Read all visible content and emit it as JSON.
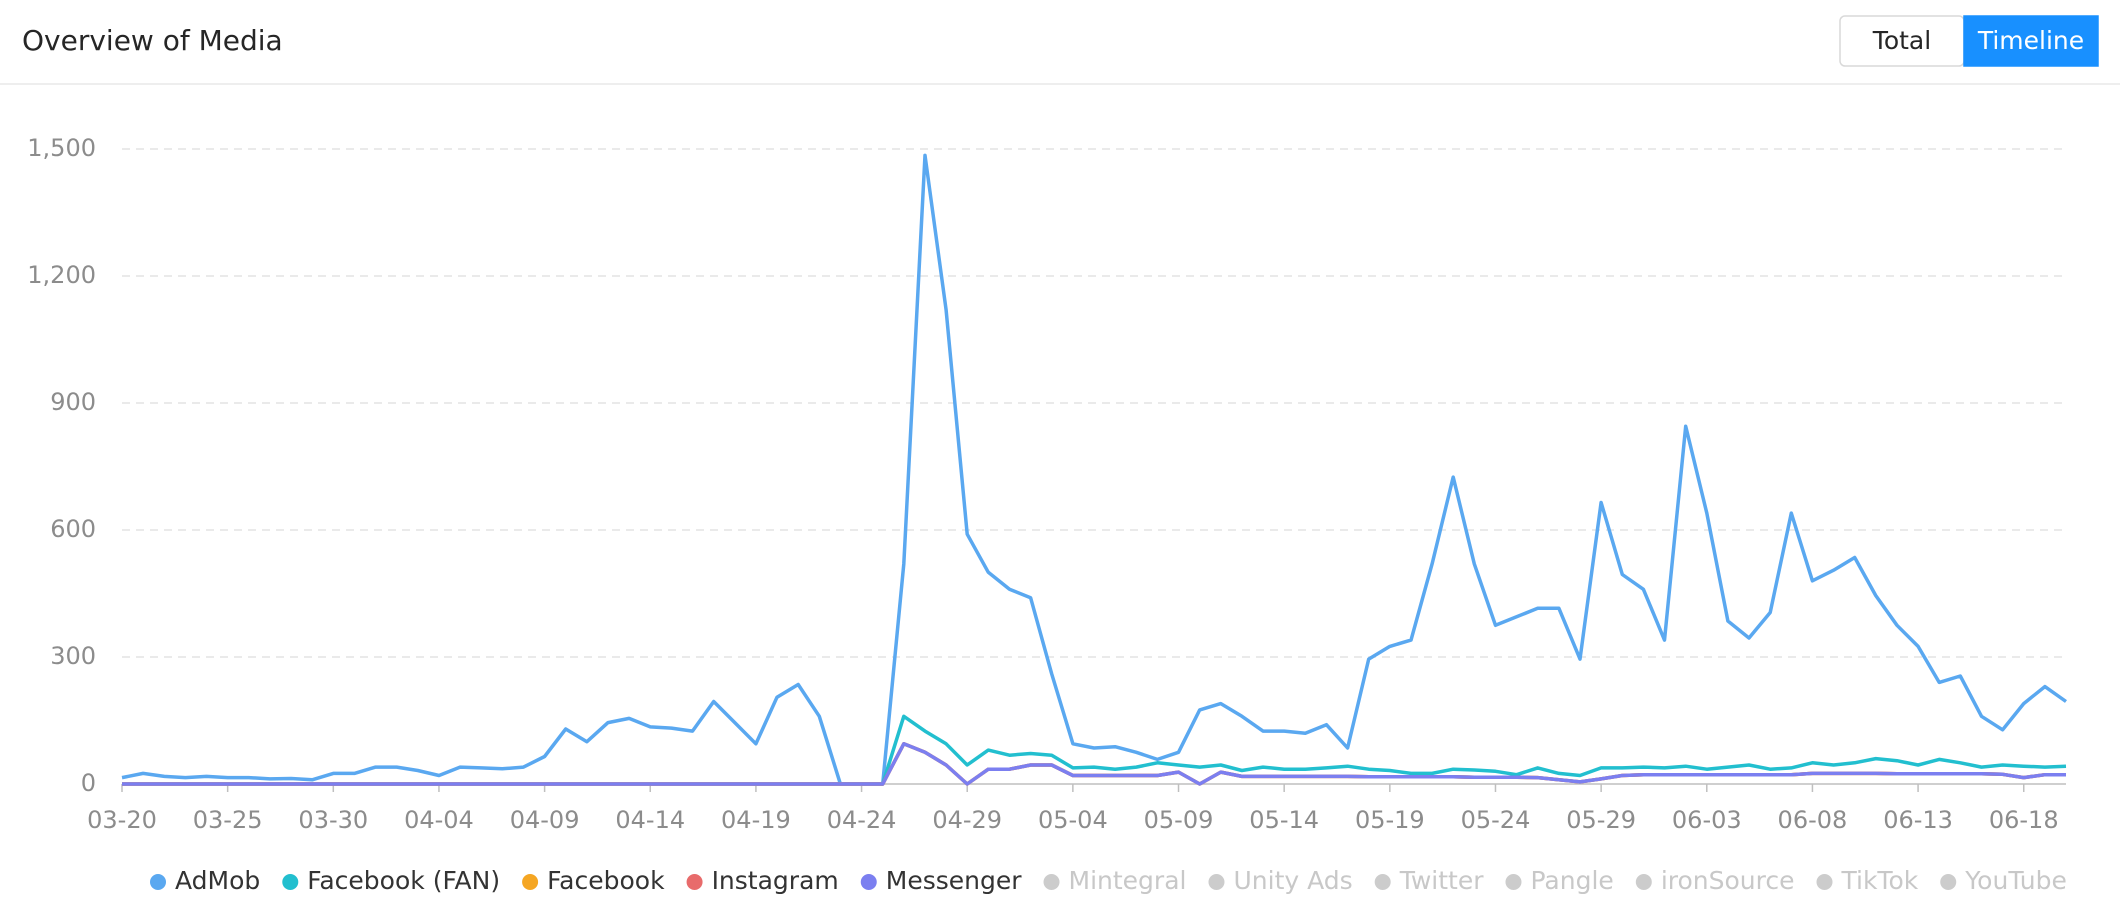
{
  "chart_data": {
    "type": "line",
    "title": "Overview of Media",
    "buttons": [
      "Total",
      "Timeline"
    ],
    "active_button": 1,
    "categories": [
      "03-20",
      null,
      null,
      null,
      null,
      "03-25",
      null,
      null,
      null,
      null,
      "03-30",
      null,
      null,
      null,
      null,
      "04-04",
      null,
      null,
      null,
      null,
      "04-09",
      null,
      null,
      null,
      null,
      "04-14",
      null,
      null,
      null,
      null,
      "04-19",
      null,
      null,
      null,
      null,
      "04-24",
      null,
      null,
      null,
      null,
      "04-29",
      null,
      null,
      null,
      null,
      "05-04",
      null,
      null,
      null,
      null,
      "05-09",
      null,
      null,
      null,
      null,
      "05-14",
      null,
      null,
      null,
      null,
      "05-19",
      null,
      null,
      null,
      null,
      "05-24",
      null,
      null,
      null,
      null,
      "05-29",
      null,
      null,
      null,
      null,
      "06-03",
      null,
      null,
      null,
      null,
      "06-08",
      null,
      null,
      null,
      null,
      "06-13",
      null,
      null,
      null,
      null,
      "06-18",
      null,
      null
    ],
    "ylim": [
      0,
      1500
    ],
    "yticks": [
      0,
      300,
      600,
      900,
      {
        "value": 1200,
        "label": "1,200"
      },
      {
        "value": 1500,
        "label": "1,500"
      }
    ],
    "grid": true,
    "series": [
      {
        "name": "AdMob",
        "color": "#5aa8f0",
        "visible": true,
        "values": [
          15,
          25,
          18,
          15,
          18,
          15,
          15,
          12,
          13,
          10,
          25,
          25,
          40,
          40,
          32,
          20,
          40,
          38,
          36,
          40,
          65,
          130,
          100,
          145,
          155,
          135,
          132,
          125,
          195,
          145,
          95,
          205,
          235,
          160,
          0,
          0,
          0,
          520,
          1485,
          1120,
          590,
          500,
          460,
          440,
          260,
          95,
          85,
          88,
          75,
          58,
          75,
          175,
          190,
          160,
          125,
          125,
          120,
          140,
          85,
          295,
          325,
          340,
          520,
          725,
          520,
          375,
          395,
          415,
          415,
          295,
          665,
          495,
          460,
          340,
          845,
          640,
          385,
          345,
          405,
          640,
          480,
          505,
          535,
          445,
          375,
          325,
          240,
          255,
          160,
          128,
          190,
          230,
          195
        ]
      },
      {
        "name": "Facebook (FAN)",
        "color": "#22bfcf",
        "visible": true,
        "values": [
          0,
          0,
          0,
          0,
          0,
          0,
          0,
          0,
          0,
          0,
          0,
          0,
          0,
          0,
          0,
          0,
          0,
          0,
          0,
          0,
          0,
          0,
          0,
          0,
          0,
          0,
          0,
          0,
          0,
          0,
          0,
          0,
          0,
          0,
          0,
          0,
          0,
          160,
          125,
          95,
          45,
          80,
          68,
          72,
          68,
          38,
          40,
          35,
          40,
          50,
          45,
          40,
          45,
          32,
          40,
          35,
          35,
          38,
          42,
          35,
          32,
          25,
          25,
          35,
          33,
          30,
          22,
          38,
          25,
          20,
          38,
          38,
          40,
          38,
          42,
          35,
          40,
          45,
          35,
          38,
          50,
          45,
          50,
          60,
          55,
          45,
          58,
          50,
          40,
          45,
          42,
          40,
          42
        ]
      },
      {
        "name": "Facebook",
        "color": "#f5a623",
        "visible": true,
        "values": [
          0,
          0,
          0,
          0,
          0,
          0,
          0,
          0,
          0,
          0,
          0,
          0,
          0,
          0,
          0,
          0,
          0,
          0,
          0,
          0,
          0,
          0,
          0,
          0,
          0,
          0,
          0,
          0,
          0,
          0,
          0,
          0,
          0,
          0,
          0,
          0,
          0,
          95,
          75,
          45,
          0,
          35,
          35,
          45,
          45,
          20,
          20,
          20,
          20,
          20,
          28,
          0,
          28,
          18,
          18,
          18,
          18,
          18,
          18,
          17,
          17,
          17,
          17,
          17,
          16,
          16,
          16,
          15,
          10,
          5,
          12,
          20,
          22,
          22,
          22,
          22,
          22,
          22,
          22,
          22,
          25,
          25,
          25,
          25,
          24,
          24,
          24,
          24,
          24,
          23,
          15,
          22,
          22
        ]
      },
      {
        "name": "Instagram",
        "color": "#e86b6b",
        "visible": true,
        "values": [
          0,
          0,
          0,
          0,
          0,
          0,
          0,
          0,
          0,
          0,
          0,
          0,
          0,
          0,
          0,
          0,
          0,
          0,
          0,
          0,
          0,
          0,
          0,
          0,
          0,
          0,
          0,
          0,
          0,
          0,
          0,
          0,
          0,
          0,
          0,
          0,
          0,
          95,
          75,
          45,
          0,
          35,
          35,
          45,
          45,
          20,
          20,
          20,
          20,
          20,
          28,
          0,
          28,
          18,
          18,
          18,
          18,
          18,
          18,
          17,
          17,
          17,
          17,
          17,
          16,
          16,
          16,
          15,
          10,
          5,
          12,
          20,
          22,
          22,
          22,
          22,
          22,
          22,
          22,
          22,
          25,
          25,
          25,
          25,
          24,
          24,
          24,
          24,
          24,
          23,
          15,
          22,
          22
        ]
      },
      {
        "name": "Messenger",
        "color": "#7b7ff0",
        "visible": true,
        "values": [
          0,
          0,
          0,
          0,
          0,
          0,
          0,
          0,
          0,
          0,
          0,
          0,
          0,
          0,
          0,
          0,
          0,
          0,
          0,
          0,
          0,
          0,
          0,
          0,
          0,
          0,
          0,
          0,
          0,
          0,
          0,
          0,
          0,
          0,
          0,
          0,
          0,
          95,
          75,
          45,
          0,
          35,
          35,
          45,
          45,
          20,
          20,
          20,
          20,
          20,
          28,
          0,
          28,
          18,
          18,
          18,
          18,
          18,
          18,
          17,
          17,
          17,
          17,
          17,
          16,
          16,
          16,
          15,
          10,
          5,
          12,
          20,
          22,
          22,
          22,
          22,
          22,
          22,
          22,
          22,
          25,
          25,
          25,
          25,
          24,
          24,
          24,
          24,
          24,
          23,
          15,
          22,
          22
        ]
      },
      {
        "name": "Mintegral",
        "color": "#cccccc",
        "visible": false
      },
      {
        "name": "Unity Ads",
        "color": "#cccccc",
        "visible": false
      },
      {
        "name": "Twitter",
        "color": "#cccccc",
        "visible": false
      },
      {
        "name": "Pangle",
        "color": "#cccccc",
        "visible": false
      },
      {
        "name": "ironSource",
        "color": "#cccccc",
        "visible": false
      },
      {
        "name": "TikTok",
        "color": "#cccccc",
        "visible": false
      },
      {
        "name": "YouTube",
        "color": "#cccccc",
        "visible": false
      }
    ]
  }
}
